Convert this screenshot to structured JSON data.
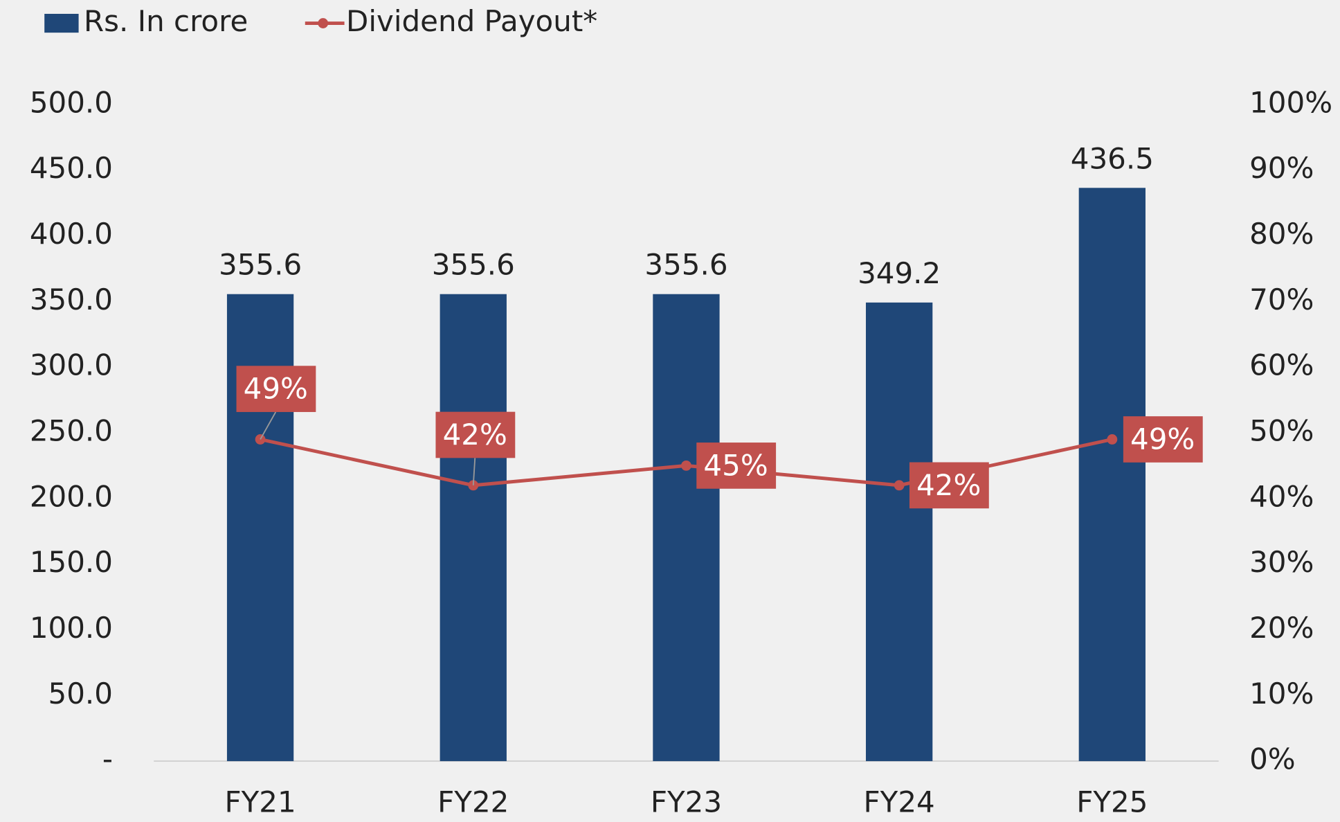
{
  "chart_data": {
    "type": "bar",
    "categories": [
      "FY21",
      "FY22",
      "FY23",
      "FY24",
      "FY25"
    ],
    "series": [
      {
        "name": "Rs. In crore",
        "type": "bar",
        "color": "#1f4778",
        "values": [
          355.6,
          355.6,
          355.6,
          349.2,
          436.5
        ]
      },
      {
        "name": "Dividend Payout*",
        "type": "line",
        "axis": "y2",
        "color": "#c0504d",
        "values": [
          49,
          42,
          45,
          42,
          49
        ],
        "value_labels": [
          "49%",
          "42%",
          "45%",
          "42%",
          "49%"
        ]
      }
    ],
    "ylim": [
      0,
      500
    ],
    "yticks": [
      {
        "value": 0,
        "label": "-"
      },
      {
        "value": 50,
        "label": "50.0"
      },
      {
        "value": 100,
        "label": "100.0"
      },
      {
        "value": 150,
        "label": "150.0"
      },
      {
        "value": 200,
        "label": "200.0"
      },
      {
        "value": 250,
        "label": "250.0"
      },
      {
        "value": 300,
        "label": "300.0"
      },
      {
        "value": 350,
        "label": "350.0"
      },
      {
        "value": 400,
        "label": "400.0"
      },
      {
        "value": 450,
        "label": "450.0"
      },
      {
        "value": 500,
        "label": "500.0"
      }
    ],
    "y2lim": [
      0,
      100
    ],
    "y2ticks": [
      {
        "value": 0,
        "label": "0%"
      },
      {
        "value": 10,
        "label": "10%"
      },
      {
        "value": 20,
        "label": "20%"
      },
      {
        "value": 30,
        "label": "30%"
      },
      {
        "value": 40,
        "label": "40%"
      },
      {
        "value": 50,
        "label": "50%"
      },
      {
        "value": 60,
        "label": "60%"
      },
      {
        "value": 70,
        "label": "70%"
      },
      {
        "value": 80,
        "label": "80%"
      },
      {
        "value": 90,
        "label": "90%"
      },
      {
        "value": 100,
        "label": "100%"
      }
    ],
    "legend": "top-left"
  }
}
